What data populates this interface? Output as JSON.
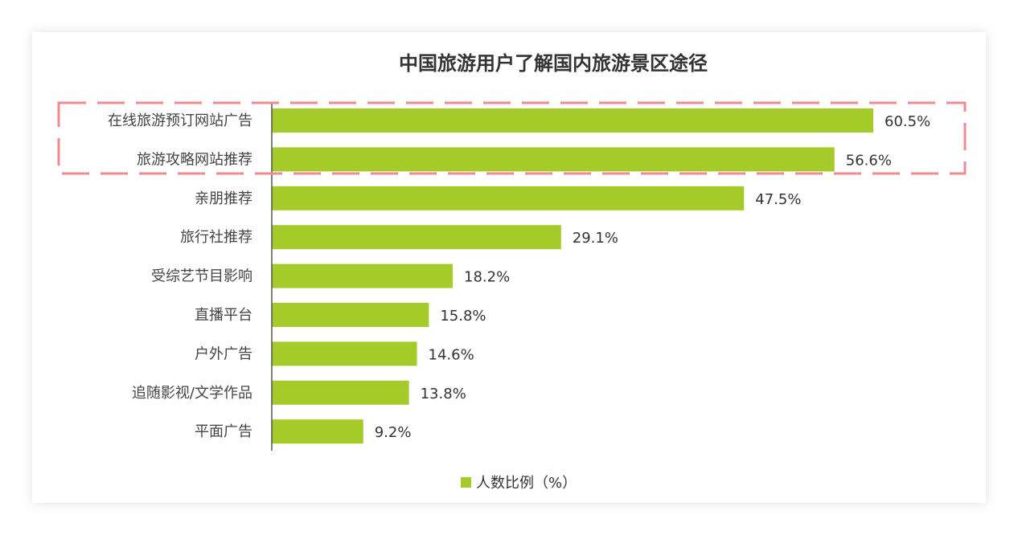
{
  "chart_data": {
    "type": "bar",
    "orientation": "horizontal",
    "title": "中国旅游用户了解国内旅游景区途径",
    "categories": [
      "在线旅游预订网站广告",
      "旅游攻略网站推荐",
      "亲朋推荐",
      "旅行社推荐",
      "受综艺节目影响",
      "直播平台",
      "户外广告",
      "追随影视/文学作品",
      "平面广告"
    ],
    "series": [
      {
        "name": "人数比例（%）",
        "values": [
          60.5,
          56.6,
          47.5,
          29.1,
          18.2,
          15.8,
          14.6,
          13.8,
          9.2
        ]
      }
    ],
    "value_labels": [
      "60.5%",
      "56.6%",
      "47.5%",
      "29.1%",
      "18.2%",
      "15.8%",
      "14.6%",
      "13.8%",
      "9.2%"
    ],
    "xlim": [
      0,
      70
    ],
    "grid": false,
    "legend": "bottom-center",
    "highlight": {
      "categories": [
        "在线旅游预订网站广告",
        "旅游攻略网站推荐"
      ],
      "style": "dashed-box"
    },
    "colors": {
      "bar": "#a5cb2a",
      "highlight": "#f08a8f",
      "axis": "#555555"
    }
  }
}
